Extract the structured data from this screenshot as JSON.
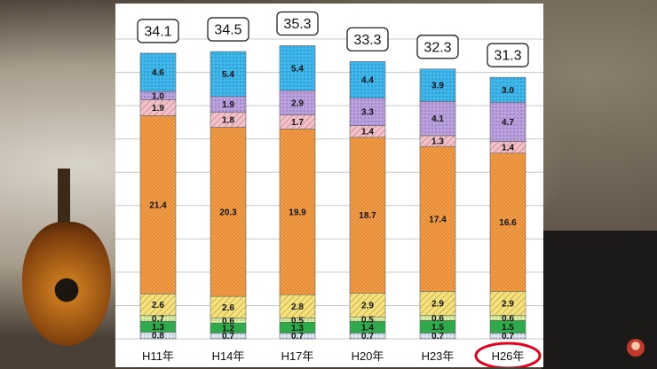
{
  "chart_data": {
    "type": "bar",
    "stacked": true,
    "categories": [
      "H11年",
      "H14年",
      "H17年",
      "H20年",
      "H23年",
      "H26年"
    ],
    "totals": [
      "34.1",
      "34.5",
      "35.3",
      "33.3",
      "32.3",
      "31.3"
    ],
    "highlighted_category": "H26年",
    "ylim": [
      0,
      36
    ],
    "grid": true,
    "series": [
      {
        "color": "#dbe6f5",
        "pattern": "dots",
        "values": [
          0.8,
          0.7,
          0.7,
          0.7,
          0.7,
          0.7
        ]
      },
      {
        "color": "#2faa4a",
        "pattern": "solid",
        "values": [
          1.3,
          1.2,
          1.3,
          1.4,
          1.5,
          1.5
        ]
      },
      {
        "color": "#d6ee9e",
        "pattern": "dots",
        "values": [
          0.7,
          0.6,
          0.5,
          0.5,
          0.6,
          0.6
        ]
      },
      {
        "color": "#f7e27a",
        "pattern": "hatch",
        "values": [
          2.6,
          2.6,
          2.8,
          2.9,
          2.9,
          2.9
        ]
      },
      {
        "color": "#f7a14a",
        "pattern": "grid",
        "values": [
          21.4,
          20.3,
          19.9,
          18.7,
          17.4,
          16.6
        ]
      },
      {
        "color": "#f6c0c8",
        "pattern": "hatch",
        "values": [
          1.9,
          1.8,
          1.7,
          1.4,
          1.3,
          1.4
        ]
      },
      {
        "color": "#bba0e0",
        "pattern": "dots",
        "values": [
          1.0,
          1.9,
          2.9,
          3.3,
          4.1,
          4.7
        ]
      },
      {
        "color": "#3db7ec",
        "pattern": "dots",
        "values": [
          4.6,
          5.4,
          5.4,
          4.4,
          3.9,
          3.0
        ]
      }
    ],
    "segment_labels": [
      [
        "0.8",
        "0.7",
        "0.7",
        "0.7",
        "0.7",
        "0.7"
      ],
      [
        "1.3",
        "1.2",
        "1.3",
        "1.4",
        "1.5",
        "1.5"
      ],
      [
        "0.7",
        "0.6",
        "0.5",
        "0.5",
        "0.6",
        "0.6"
      ],
      [
        "2.6",
        "2.6",
        "2.8",
        "2.9",
        "2.9",
        "2.9"
      ],
      [
        "21.4",
        "20.3",
        "19.9",
        "18.7",
        "17.4",
        "16.6"
      ],
      [
        "1.9",
        "1.8",
        "1.7",
        "1.4",
        "1.3",
        "1.4"
      ],
      [
        "1.0",
        "1.9",
        "2.9",
        "3.3",
        "4.1",
        "4.7"
      ],
      [
        "4.6",
        "5.4",
        "5.4",
        "4.4",
        "3.9",
        "3.0"
      ]
    ]
  }
}
